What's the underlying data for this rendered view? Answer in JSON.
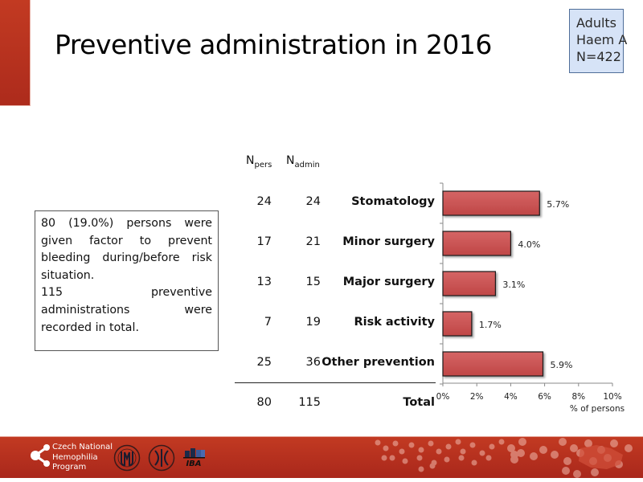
{
  "slide": {
    "title": "Preventive administration in 2016",
    "cohort": [
      "Adults",
      "Haem A",
      "N=422"
    ],
    "summary": [
      "80 (19.0%) persons were given factor to prevent bleeding during/before risk situation.",
      "115 preventive administrations were recorded in total."
    ]
  },
  "table": {
    "headers": [
      {
        "base": "N",
        "sub": "pers"
      },
      {
        "base": "N",
        "sub": "admin"
      }
    ],
    "rows": [
      {
        "category": "Stomatology",
        "n_pers": "24",
        "n_admin": "24"
      },
      {
        "category": "Minor surgery",
        "n_pers": "17",
        "n_admin": "21"
      },
      {
        "category": "Major surgery",
        "n_pers": "13",
        "n_admin": "15"
      },
      {
        "category": "Risk activity",
        "n_pers": "7",
        "n_admin": "19"
      },
      {
        "category": "Other prevention",
        "n_pers": "25",
        "n_admin": "36"
      }
    ],
    "total": {
      "category": "Total",
      "n_pers": "80",
      "n_admin": "115"
    }
  },
  "chart_data": {
    "type": "bar",
    "orientation": "horizontal",
    "categories": [
      "Stomatology",
      "Minor surgery",
      "Major surgery",
      "Risk activity",
      "Other prevention"
    ],
    "values": [
      5.7,
      4.0,
      3.1,
      1.7,
      5.9
    ],
    "data_labels": [
      "5.7%",
      "4.0%",
      "3.1%",
      "1.7%",
      "5.9%"
    ],
    "title": "",
    "xlabel": "% of persons",
    "ylabel": "",
    "xlim": [
      0,
      10
    ],
    "xticks": [
      0,
      2,
      4,
      6,
      8,
      10
    ],
    "xtick_labels": [
      "0%",
      "2%",
      "4%",
      "6%",
      "8%",
      "10%"
    ],
    "grid": false,
    "bar_color": "#c84f4f"
  },
  "footer": {
    "org_name": [
      "Czech National",
      "Hemophilia",
      "Program"
    ],
    "logos": [
      "cnhp-logo",
      "university-seal-logo",
      "medical-society-logo",
      "iba-logo"
    ],
    "iba_label": "IBA",
    "brand_color": "#b82f1f"
  }
}
